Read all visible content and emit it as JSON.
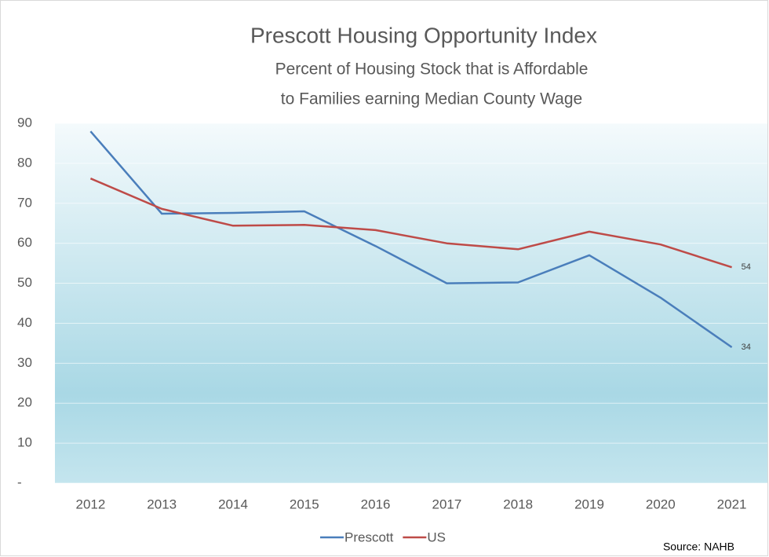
{
  "chart_data": {
    "type": "line",
    "title": "Prescott Housing Opportunity Index",
    "subtitle": [
      "Percent of Housing Stock that is Affordable",
      "to Families earning Median County Wage"
    ],
    "categories": [
      "2012",
      "2013",
      "2014",
      "2015",
      "2016",
      "2017",
      "2018",
      "2019",
      "2020",
      "2021"
    ],
    "series": [
      {
        "name": "Prescott",
        "color": "#4a7ebb",
        "values": [
          88,
          67.4,
          67.6,
          68,
          59.3,
          50,
          50.2,
          57,
          46.4,
          34
        ]
      },
      {
        "name": "US",
        "color": "#be4b48",
        "values": [
          76.2,
          68.6,
          64.4,
          64.6,
          63.3,
          60,
          58.5,
          62.9,
          59.7,
          54
        ]
      }
    ],
    "ylim": [
      0,
      90
    ],
    "yticks": [
      {
        "value": 0,
        "label": "-"
      },
      10,
      20,
      30,
      40,
      50,
      60,
      70,
      80,
      90
    ],
    "grid": true,
    "legend": "bottom",
    "annotation": "Source: NAHB"
  }
}
